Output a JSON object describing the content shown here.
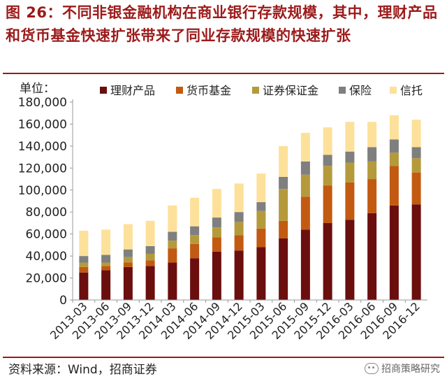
{
  "header": {
    "title": "图 26：不同非银金融机构在商业银行存款规模，其中，理财产品和货币基金快速扩张带来了同业存款规模的快速扩张"
  },
  "footer": {
    "source": "资料来源：Wind，招商证券",
    "watermark": "招商策略研究",
    "watermark_icon": "wechat-icon"
  },
  "colors": {
    "title": "#9c1a1a",
    "理财产品": "#6b0e0e",
    "货币基金": "#c25a11",
    "证券保证金": "#b59a3c",
    "保险": "#7f7f7f",
    "信托": "#fde19a"
  },
  "chart_data": {
    "type": "bar",
    "stacked": true,
    "ylabel": "单位：",
    "ylim": [
      0,
      180000
    ],
    "yticks": [
      "0",
      "20,000",
      "40,000",
      "60,000",
      "80,000",
      "100,000",
      "120,000",
      "140,000",
      "160,000",
      "180,000"
    ],
    "legend_position": "top",
    "grid": false,
    "categories": [
      "2013-03",
      "2013-06",
      "2013-09",
      "2013-12",
      "2014-03",
      "2014-06",
      "2014-09",
      "2014-12",
      "2015-03",
      "2015-06",
      "2015-09",
      "2015-12",
      "2016-03",
      "2016-06",
      "2016-09",
      "2016-12"
    ],
    "series": [
      {
        "name": "理财产品",
        "color": "#6b0e0e",
        "values": [
          25000,
          27000,
          30000,
          31000,
          34000,
          38000,
          44000,
          45000,
          48000,
          56000,
          64000,
          70000,
          73000,
          79000,
          86000,
          87000
        ]
      },
      {
        "name": "货币基金",
        "color": "#c25a11",
        "values": [
          5000,
          4000,
          4000,
          5000,
          13000,
          13000,
          13000,
          14000,
          17000,
          16000,
          30000,
          34000,
          34000,
          31000,
          36000,
          29000
        ]
      },
      {
        "name": "证券保证金",
        "color": "#b59a3c",
        "values": [
          4000,
          3000,
          5000,
          6000,
          7000,
          8000,
          9000,
          12000,
          16000,
          29000,
          20000,
          18000,
          18000,
          16000,
          12000,
          13000
        ]
      },
      {
        "name": "保险",
        "color": "#7f7f7f",
        "values": [
          6000,
          7000,
          7000,
          7000,
          8000,
          8000,
          9000,
          9000,
          8000,
          11000,
          12000,
          10000,
          10000,
          13000,
          12000,
          10000
        ]
      },
      {
        "name": "信托",
        "color": "#fde19a",
        "values": [
          23000,
          23000,
          23000,
          23000,
          24000,
          26000,
          26000,
          26000,
          26000,
          28000,
          26000,
          25000,
          27000,
          23000,
          22000,
          25000
        ]
      }
    ]
  }
}
